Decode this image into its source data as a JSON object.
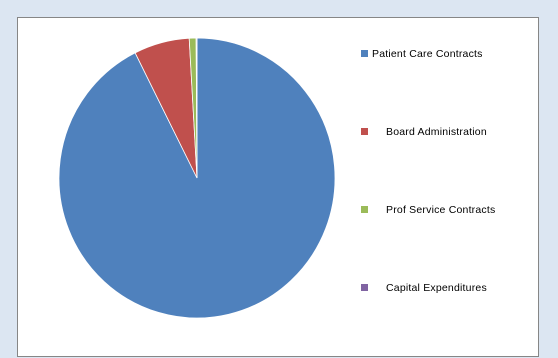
{
  "chart_data": {
    "type": "pie",
    "title": "",
    "legend_position": "right",
    "slices": [
      {
        "label": "Patient Care Contracts",
        "value": 92.6,
        "color": "#4f81bd"
      },
      {
        "label": "Board Administration",
        "value": 6.5,
        "color": "#c0504d"
      },
      {
        "label": "Prof Service Contracts",
        "value": 0.8,
        "color": "#9bbb59"
      },
      {
        "label": "Capital Expenditures",
        "value": 0.1,
        "color": "#8064a2"
      }
    ]
  }
}
